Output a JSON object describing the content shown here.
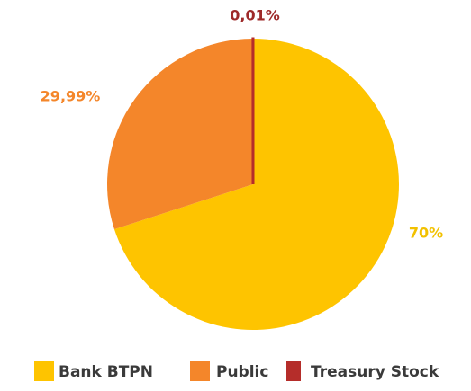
{
  "chart_data": {
    "type": "pie",
    "categories": [
      "Bank BTPN",
      "Public",
      "Treasury Stock"
    ],
    "values": [
      70,
      29.99,
      0.01
    ],
    "value_labels": [
      "70%",
      "29,99%",
      "0,01%"
    ],
    "colors": [
      "#fec400",
      "#f4862a",
      "#b52d2a"
    ],
    "legend": "bottom"
  }
}
